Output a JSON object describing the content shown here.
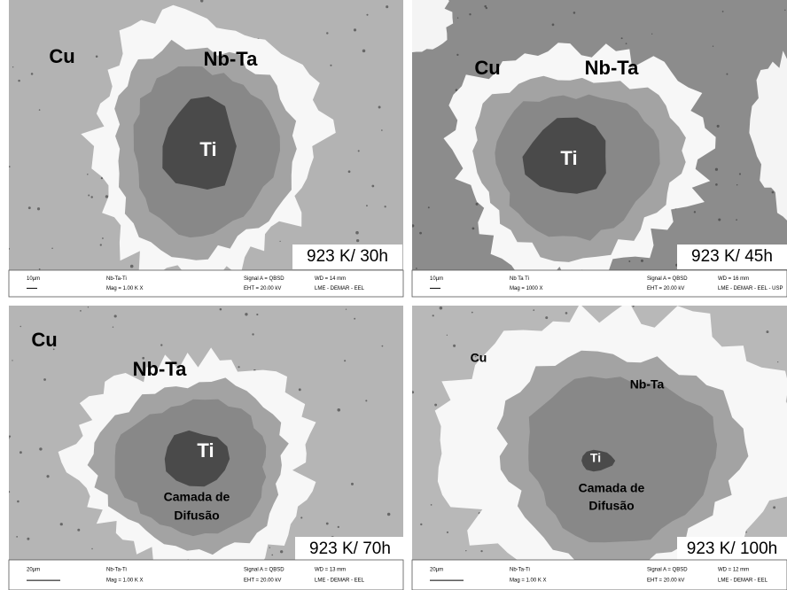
{
  "panels": [
    {
      "labels": [
        "Cu",
        "Nb-Ta",
        "Ti"
      ],
      "condition": "923 K/ 30h",
      "info": {
        "scale": "10µm",
        "sample": "Nb-Ta-Ti",
        "mag": "Mag =   1.00 K X",
        "signal": "Signal A = QBSD",
        "eht": "EHT = 20.00 kV",
        "wd": "WD =   14 mm",
        "lab": "LME - DEMAR - EEL"
      }
    },
    {
      "labels": [
        "Cu",
        "Nb-Ta",
        "Ti"
      ],
      "condition": "923 K/ 45h",
      "info": {
        "scale": "10µm",
        "sample": "Nb Ta Ti",
        "mag": "Mag =   1000 X",
        "signal": "Signal A = QBSD",
        "eht": "EHT = 20.00 kV",
        "wd": "WD =   16 mm",
        "lab": "LME - DEMAR - EEL - USP"
      }
    },
    {
      "labels": [
        "Cu",
        "Nb-Ta",
        "Ti",
        "Camada de",
        "Difusão"
      ],
      "condition": "923 K/ 70h",
      "info": {
        "scale": "20µm",
        "sample": "Nb-Ta-Ti",
        "mag": "Mag =   1.00 K X",
        "signal": "Signal A = QBSD",
        "eht": "EHT = 20.00 kV",
        "wd": "WD =   13 mm",
        "lab": "LME - DEMAR - EEL"
      }
    },
    {
      "labels": [
        "Cu",
        "Nb-Ta",
        "Ti",
        "Camada de",
        "Difusão"
      ],
      "condition": "923 K/ 100h",
      "info": {
        "scale": "20µm",
        "sample": "Nb-Ta-Ti",
        "mag": "Mag =   1.00 K X",
        "signal": "Signal A = QBSD",
        "eht": "EHT = 20.00 kV",
        "wd": "WD =   12 mm",
        "lab": "LME - DEMAR - EEL"
      }
    }
  ]
}
